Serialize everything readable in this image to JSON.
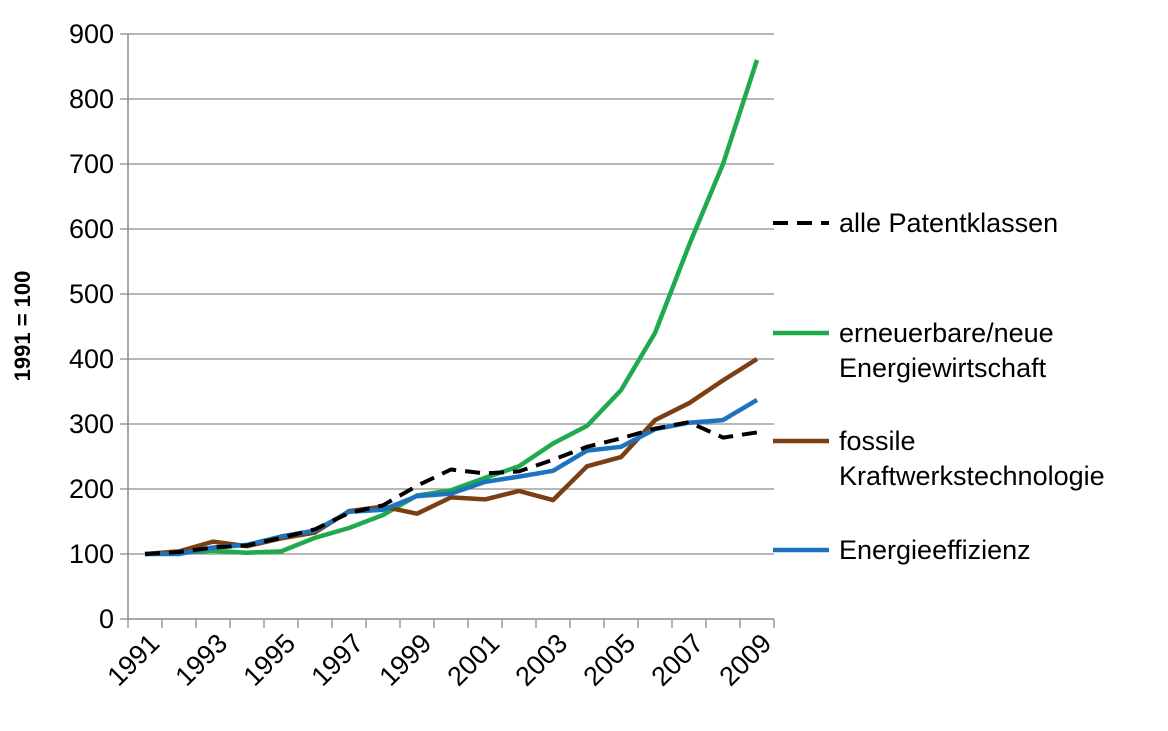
{
  "chart_data": {
    "type": "line",
    "ylabel": "1991 = 100",
    "xlabel": "",
    "ylim": [
      0,
      900
    ],
    "yticks": [
      0,
      100,
      200,
      300,
      400,
      500,
      600,
      700,
      800,
      900
    ],
    "x": [
      1991,
      1992,
      1993,
      1994,
      1995,
      1996,
      1997,
      1998,
      1999,
      2000,
      2001,
      2002,
      2003,
      2004,
      2005,
      2006,
      2007,
      2008,
      2009
    ],
    "xtick_labels": [
      "1991",
      "1993",
      "1995",
      "1997",
      "1999",
      "2001",
      "2003",
      "2005",
      "2007",
      "2009"
    ],
    "grid": "horizontal",
    "legend_position": "right",
    "series": [
      {
        "name": "alle Patentklassen",
        "color": "#000000",
        "dash": "dashed",
        "values": [
          100,
          103,
          110,
          113,
          125,
          138,
          163,
          175,
          205,
          230,
          224,
          227,
          245,
          265,
          278,
          293,
          303,
          279,
          287
        ]
      },
      {
        "name": "erneuerbare/neue Energiewirtschaft",
        "color": "#1faa4e",
        "dash": "solid",
        "values": [
          100,
          102,
          105,
          102,
          104,
          125,
          140,
          160,
          190,
          198,
          217,
          235,
          270,
          297,
          352,
          440,
          575,
          700,
          860
        ]
      },
      {
        "name": "fossile Kraftwerkstechnologie",
        "color": "#7b3f13",
        "dash": "solid",
        "values": [
          100,
          104,
          119,
          112,
          124,
          133,
          166,
          173,
          162,
          187,
          184,
          197,
          183,
          235,
          249,
          306,
          332,
          367,
          400
        ]
      },
      {
        "name": "Energieeffizienz",
        "color": "#1e73be",
        "dash": "solid",
        "values": [
          100,
          100,
          110,
          114,
          127,
          136,
          165,
          168,
          189,
          193,
          211,
          219,
          228,
          259,
          265,
          292,
          302,
          306,
          337
        ]
      }
    ],
    "legend": [
      {
        "lines": [
          "alle Patentklassen"
        ]
      },
      {
        "lines": [
          "erneuerbare/neue",
          "Energiewirtschaft"
        ]
      },
      {
        "lines": [
          "fossile",
          "Kraftwerkstechnologie"
        ]
      },
      {
        "lines": [
          "Energieeffizienz"
        ]
      }
    ]
  }
}
